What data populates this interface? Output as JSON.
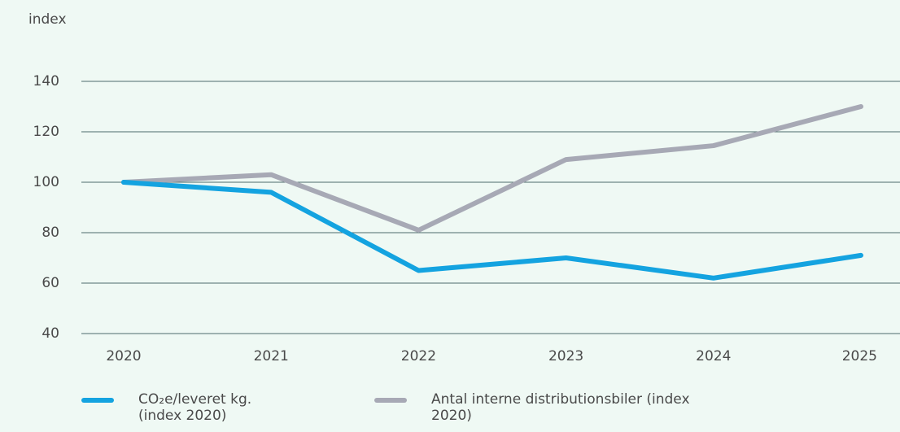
{
  "chart_data": {
    "type": "line",
    "y_label": "index",
    "categories": [
      "2020",
      "2021",
      "2022",
      "2023",
      "2024",
      "2025"
    ],
    "series": [
      {
        "name": "CO₂e/leveret kg. (index 2020)",
        "color": "#14a3e0",
        "values": [
          100,
          96,
          65,
          70,
          62,
          71
        ]
      },
      {
        "name": "Antal interne distributionsbiler (index 2020)",
        "color": "#a7a9b5",
        "values": [
          100,
          103,
          81,
          109,
          114.5,
          130
        ]
      }
    ],
    "ylim": [
      40,
      140
    ],
    "yticks": [
      40,
      60,
      80,
      100,
      120,
      140
    ],
    "grid": true
  }
}
